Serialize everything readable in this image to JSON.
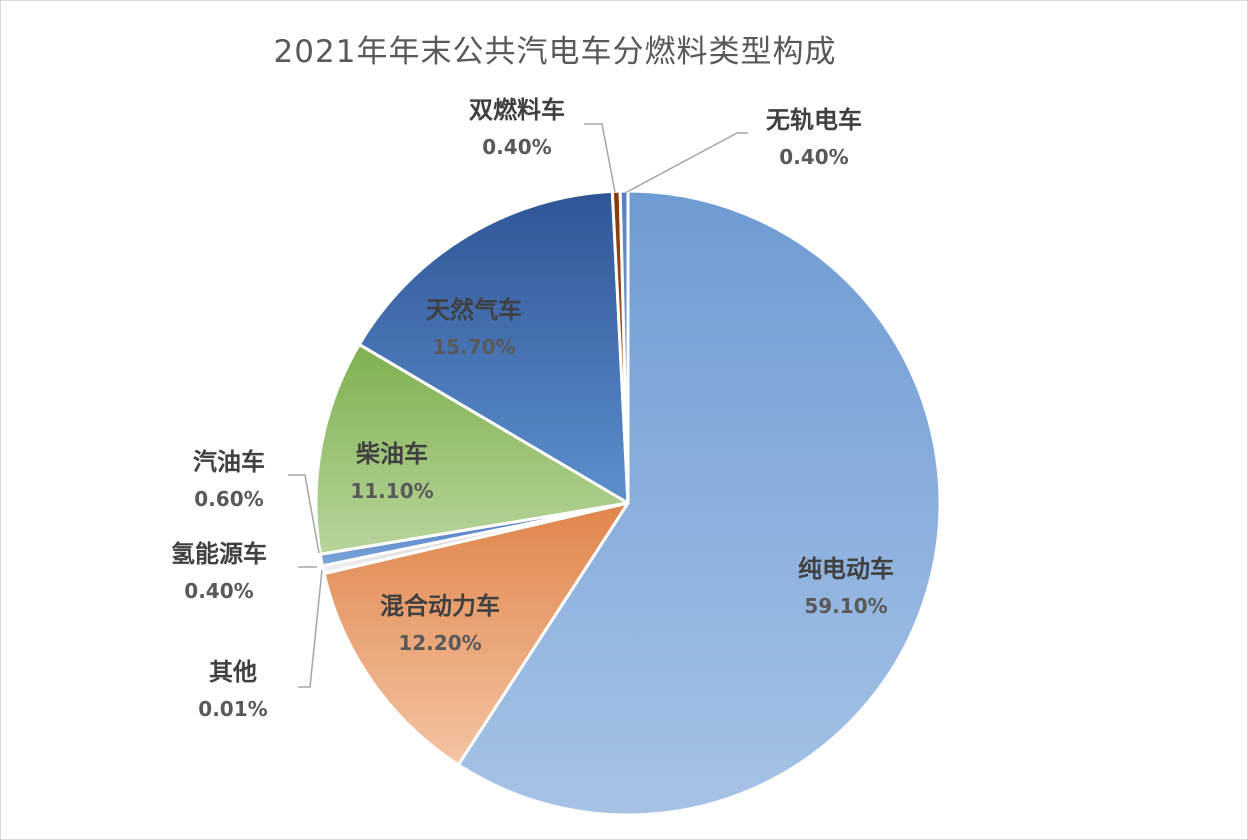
{
  "chart_data": {
    "type": "pie",
    "title": "2021年年末公共汽电车分燃料类型构成",
    "slices": [
      {
        "label": "纯电动车",
        "value_label": "59.10%",
        "value": 59.1,
        "color_light": "#a6c3e6",
        "color_dark": "#6f9bd3",
        "text_color": "#404040",
        "placement": "inside"
      },
      {
        "label": "混合动力车",
        "value_label": "12.20%",
        "value": 12.2,
        "color_light": "#f4c4a3",
        "color_dark": "#e0854a",
        "text_color": "#404040",
        "placement": "inside"
      },
      {
        "label": "其他",
        "value_label": "0.01%",
        "value": 0.01,
        "color_light": "#cfcfcf",
        "color_dark": "#a5a5a5",
        "text_color": "#404040",
        "placement": "outside"
      },
      {
        "label": "氢能源车",
        "value_label": "0.40%",
        "value": 0.4,
        "color_light": "#f2f2f2",
        "color_dark": "#bfbfbf",
        "text_color": "#404040",
        "placement": "outside"
      },
      {
        "label": "汽油车",
        "value_label": "0.60%",
        "value": 0.6,
        "color_light": "#7da7d9",
        "color_dark": "#4472c4",
        "text_color": "#404040",
        "placement": "outside"
      },
      {
        "label": "柴油车",
        "value_label": "11.10%",
        "value": 11.1,
        "color_light": "#b8d59c",
        "color_dark": "#7fb04f",
        "text_color": "#404040",
        "placement": "inside"
      },
      {
        "label": "天然气车",
        "value_label": "15.70%",
        "value": 15.7,
        "color_light": "#5d8fcd",
        "color_dark": "#2f5597",
        "text_color": "#404040",
        "placement": "inside"
      },
      {
        "label": "双燃料车",
        "value_label": "0.40%",
        "value": 0.4,
        "color_light": "#c55a11",
        "color_dark": "#843c0c",
        "text_color": "#404040",
        "placement": "outside"
      },
      {
        "label": "无轨电车",
        "value_label": "0.40%",
        "value": 0.4,
        "color_light": "#8faadc",
        "color_dark": "#5b7fbf",
        "text_color": "#404040",
        "placement": "outside"
      }
    ],
    "legend": "none"
  }
}
